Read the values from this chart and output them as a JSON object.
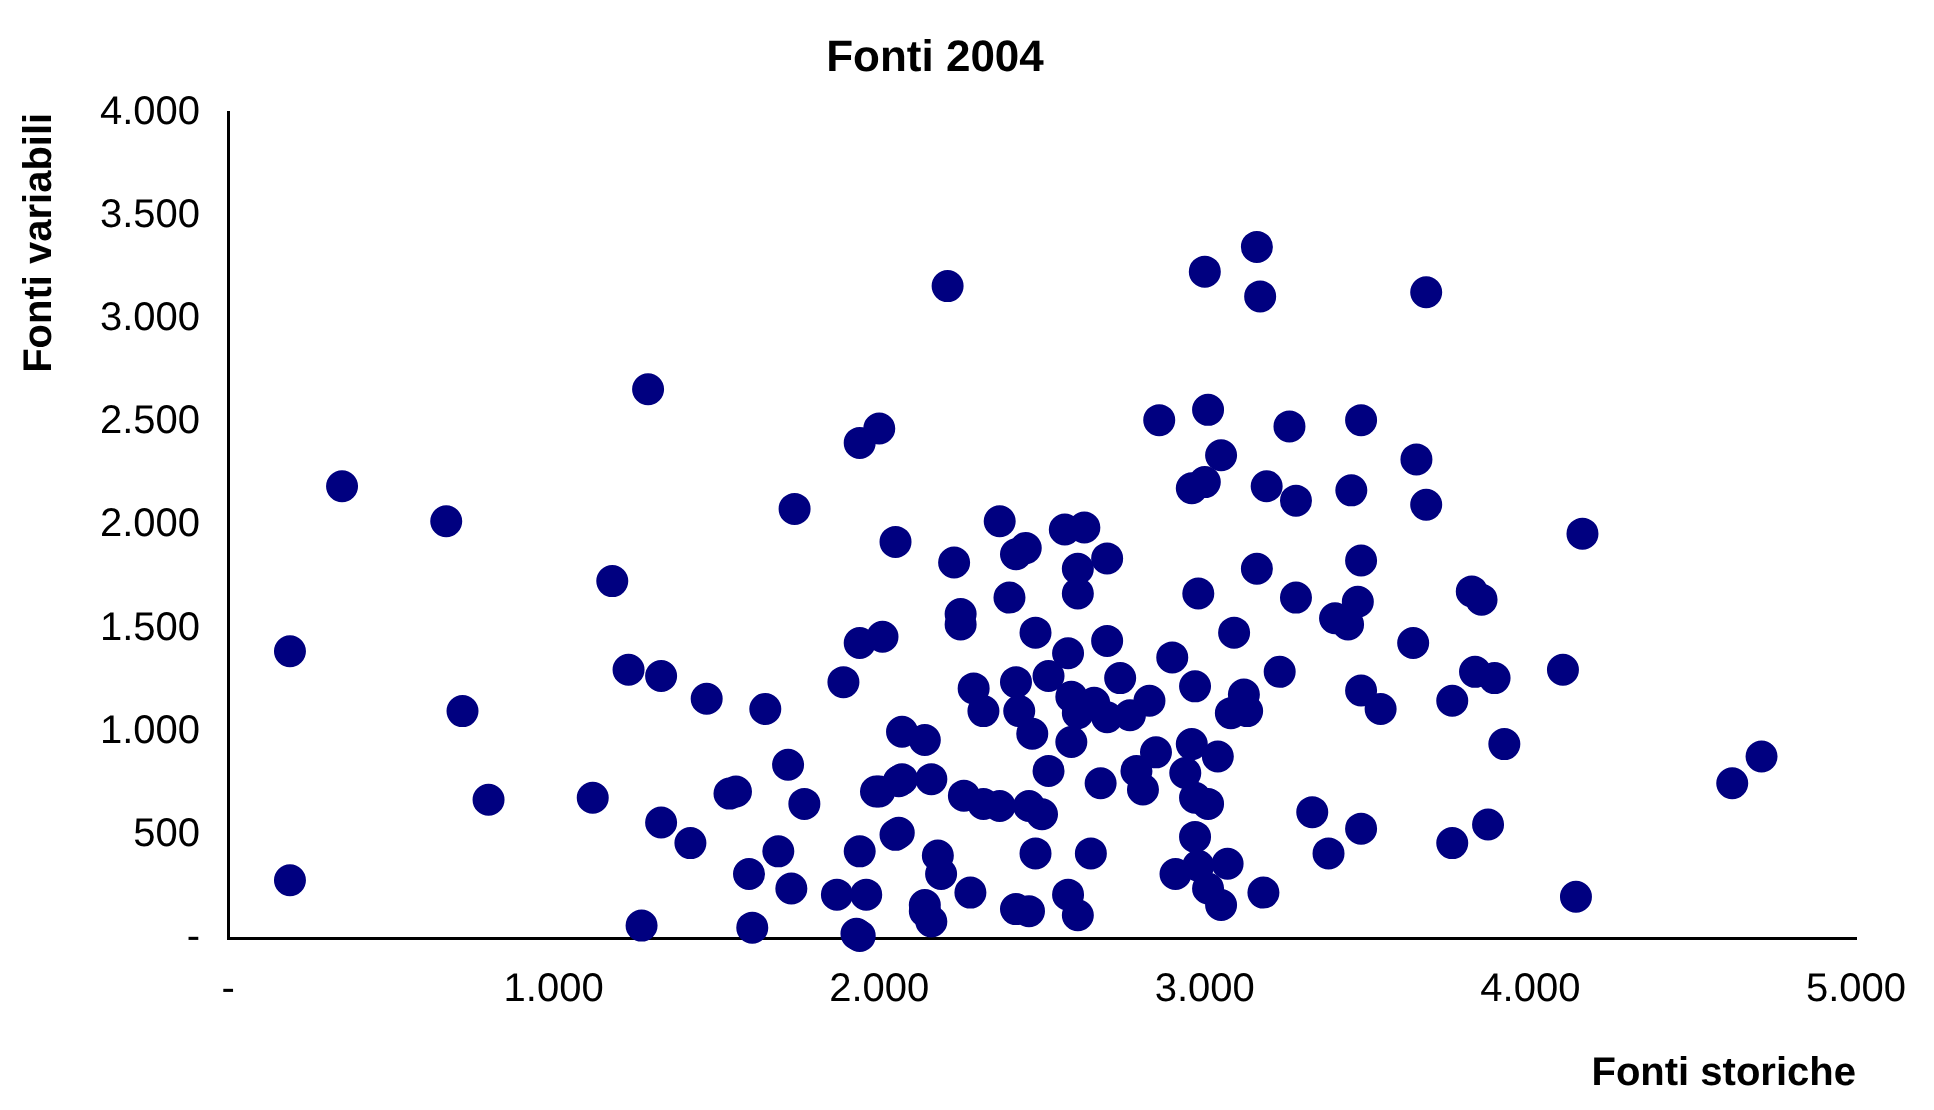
{
  "chart_data": {
    "type": "scatter",
    "title": "Fonti 2004",
    "xlabel": "Fonti storiche",
    "ylabel": "Fonti variabili",
    "xlim": [
      0,
      5000
    ],
    "ylim": [
      0,
      4000
    ],
    "xticks": [
      {
        "value": 0,
        "label": "-"
      },
      {
        "value": 1000,
        "label": "1.000"
      },
      {
        "value": 2000,
        "label": "2.000"
      },
      {
        "value": 3000,
        "label": "3.000"
      },
      {
        "value": 4000,
        "label": "4.000"
      },
      {
        "value": 5000,
        "label": "5.000"
      }
    ],
    "yticks": [
      {
        "value": 0,
        "label": "-"
      },
      500,
      {
        "value": 1000,
        "label": "1.000"
      },
      {
        "value": 1500,
        "label": "1.500"
      },
      {
        "value": 2000,
        "label": "2.000"
      },
      {
        "value": 2500,
        "label": "2.500"
      },
      {
        "value": 3000,
        "label": "3.000"
      },
      {
        "value": 3500,
        "label": "3.500"
      },
      {
        "value": 4000,
        "label": "4.000"
      }
    ],
    "grid": false,
    "legend": false,
    "marker": "circle",
    "series": [
      {
        "color": "#000080",
        "x": [
          190,
          190,
          350,
          670,
          720,
          800,
          1120,
          1180,
          1230,
          1290,
          1270,
          1330,
          1330,
          1420,
          1470,
          1540,
          1600,
          1610,
          1650,
          1690,
          1720,
          1730,
          1740,
          1770,
          1870,
          1890,
          1940,
          1940,
          1960,
          1940,
          1940,
          2000,
          2010,
          1990,
          2050,
          2050,
          2070,
          2070,
          2140,
          2140,
          2210,
          2230,
          2370,
          2420,
          2450,
          2570,
          2630,
          2610,
          2610,
          2700,
          2400,
          2250,
          2250,
          2480,
          2580,
          2700,
          2290,
          2320,
          2420,
          2430,
          2470,
          2520,
          2590,
          2660,
          2700,
          2610,
          2590,
          2520,
          2680,
          2060,
          2000,
          2160,
          2260,
          2320,
          2370,
          2460,
          2500,
          2060,
          2180,
          2190,
          2480,
          2650,
          2280,
          2140,
          2160,
          2420,
          2460,
          2580,
          2610,
          1930,
          1560,
          3160,
          3000,
          3170,
          3680,
          2860,
          3010,
          3050,
          2960,
          3000,
          3260,
          3480,
          3190,
          3280,
          3450,
          3650,
          3680,
          2980,
          3160,
          3280,
          3480,
          3470,
          3400,
          3440,
          3090,
          3640,
          3820,
          3850,
          2900,
          2740,
          2970,
          3230,
          2830,
          3120,
          3080,
          3130,
          3480,
          3540,
          3760,
          2770,
          2850,
          2960,
          3040,
          2790,
          2810,
          2940,
          2970,
          3010,
          2970,
          2910,
          2980,
          3070,
          3010,
          3050,
          3180,
          3330,
          3380,
          3480,
          3760,
          4160,
          3830,
          3890,
          4100,
          3920,
          4620,
          4710,
          3870,
          4140
        ],
        "values": [
          1390,
          280,
          2190,
          2020,
          1100,
          670,
          680,
          1730,
          1300,
          2660,
          60,
          1270,
          560,
          460,
          1160,
          700,
          310,
          50,
          1110,
          420,
          840,
          240,
          2080,
          650,
          210,
          1240,
          420,
          10,
          210,
          1430,
          2400,
          2470,
          1460,
          710,
          1920,
          500,
          770,
          1000,
          960,
          130,
          3160,
          1820,
          2020,
          1860,
          1890,
          1980,
          1990,
          1790,
          1670,
          1840,
          1650,
          1570,
          1520,
          1480,
          1380,
          1440,
          1210,
          1100,
          1240,
          1100,
          990,
          1270,
          1170,
          1140,
          1070,
          1090,
          950,
          810,
          750,
          760,
          710,
          770,
          690,
          650,
          640,
          640,
          600,
          510,
          400,
          310,
          410,
          410,
          220,
          160,
          80,
          140,
          130,
          210,
          110,
          20,
          710,
          3350,
          3230,
          3110,
          3130,
          2510,
          2560,
          2340,
          2180,
          2210,
          2480,
          2510,
          2190,
          2120,
          2170,
          2320,
          2100,
          1670,
          1790,
          1650,
          1830,
          1630,
          1550,
          1520,
          1480,
          1430,
          1680,
          1640,
          1360,
          1260,
          1220,
          1290,
          1150,
          1180,
          1090,
          1100,
          1200,
          1110,
          1150,
          1080,
          900,
          940,
          880,
          810,
          720,
          800,
          680,
          650,
          490,
          310,
          350,
          360,
          240,
          160,
          220,
          610,
          410,
          530,
          460,
          1960,
          1290,
          1260,
          1300,
          940,
          750,
          880,
          550,
          200
        ]
      }
    ]
  }
}
